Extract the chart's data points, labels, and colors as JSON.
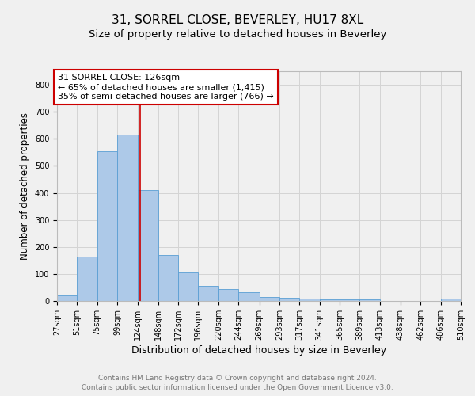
{
  "title": "31, SORREL CLOSE, BEVERLEY, HU17 8XL",
  "subtitle": "Size of property relative to detached houses in Beverley",
  "xlabel": "Distribution of detached houses by size in Beverley",
  "ylabel": "Number of detached properties",
  "footnote1": "Contains HM Land Registry data © Crown copyright and database right 2024.",
  "footnote2": "Contains public sector information licensed under the Open Government Licence v3.0.",
  "bar_edges": [
    27,
    51,
    75,
    99,
    124,
    148,
    172,
    196,
    220,
    244,
    269,
    293,
    317,
    341,
    365,
    389,
    413,
    438,
    462,
    486,
    510
  ],
  "bar_heights": [
    20,
    165,
    555,
    615,
    410,
    170,
    105,
    55,
    45,
    32,
    15,
    12,
    10,
    7,
    5,
    5,
    0,
    0,
    0,
    8
  ],
  "bar_color": "#adc9e8",
  "bar_edge_color": "#5a9fd4",
  "property_line_x": 126,
  "property_line_color": "#cc0000",
  "annotation_line1": "31 SORREL CLOSE: 126sqm",
  "annotation_line2": "← 65% of detached houses are smaller (1,415)",
  "annotation_line3": "35% of semi-detached houses are larger (766) →",
  "annotation_box_color": "#cc0000",
  "ylim": [
    0,
    850
  ],
  "yticks": [
    0,
    100,
    200,
    300,
    400,
    500,
    600,
    700,
    800
  ],
  "grid_color": "#d4d4d4",
  "background_color": "#f0f0f0",
  "title_fontsize": 11,
  "subtitle_fontsize": 9.5,
  "tick_fontsize": 7,
  "ylabel_fontsize": 8.5,
  "xlabel_fontsize": 9,
  "annotation_fontsize": 8,
  "footnote_fontsize": 6.5
}
